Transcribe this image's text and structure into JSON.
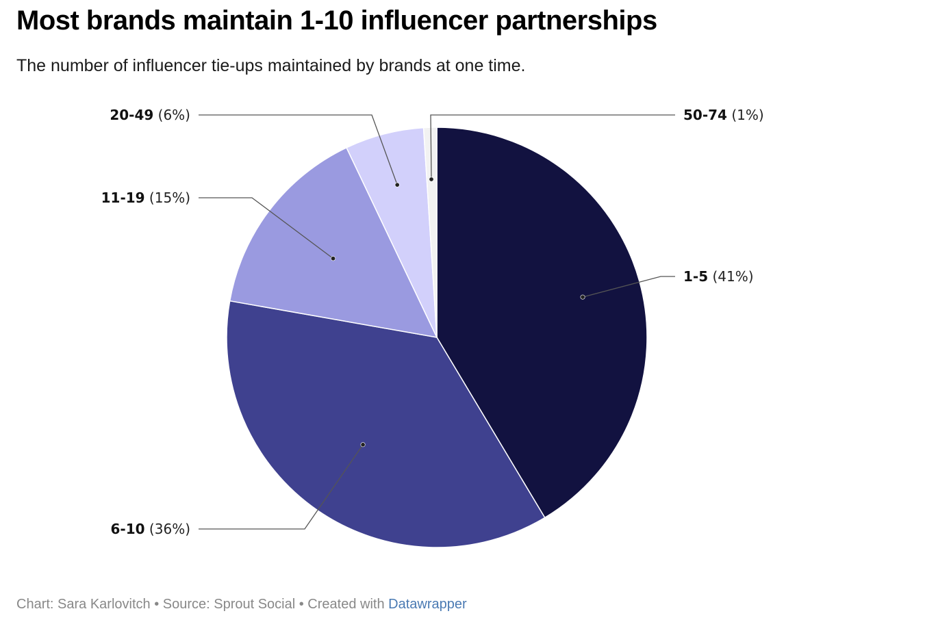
{
  "title": "Most brands maintain 1-10 influencer partnerships",
  "subtitle": "The number of influencer tie-ups maintained by brands at one time.",
  "footer": {
    "credit": "Chart: Sara Karlovitch • Source: Sprout Social • Created with ",
    "link": "Datawrapper"
  },
  "chart_data": {
    "type": "pie",
    "title": "Most brands maintain 1-10 influencer partnerships",
    "subtitle": "The number of influencer tie-ups maintained by brands at one time.",
    "slices": [
      {
        "label": "1-5",
        "value": 41,
        "pct_text": "(41%)",
        "color": "#121240"
      },
      {
        "label": "6-10",
        "value": 36,
        "pct_text": "(36%)",
        "color": "#3f418f"
      },
      {
        "label": "11-19",
        "value": 15,
        "pct_text": "(15%)",
        "color": "#9a9ae0"
      },
      {
        "label": "20-49",
        "value": 6,
        "pct_text": "(6%)",
        "color": "#d2d0fb"
      },
      {
        "label": "50-74",
        "value": 1,
        "pct_text": "(1%)",
        "color": "#f2f2f2"
      }
    ],
    "start": "12 o'clock",
    "direction": "clockwise",
    "legend": "none (direct labels)"
  }
}
